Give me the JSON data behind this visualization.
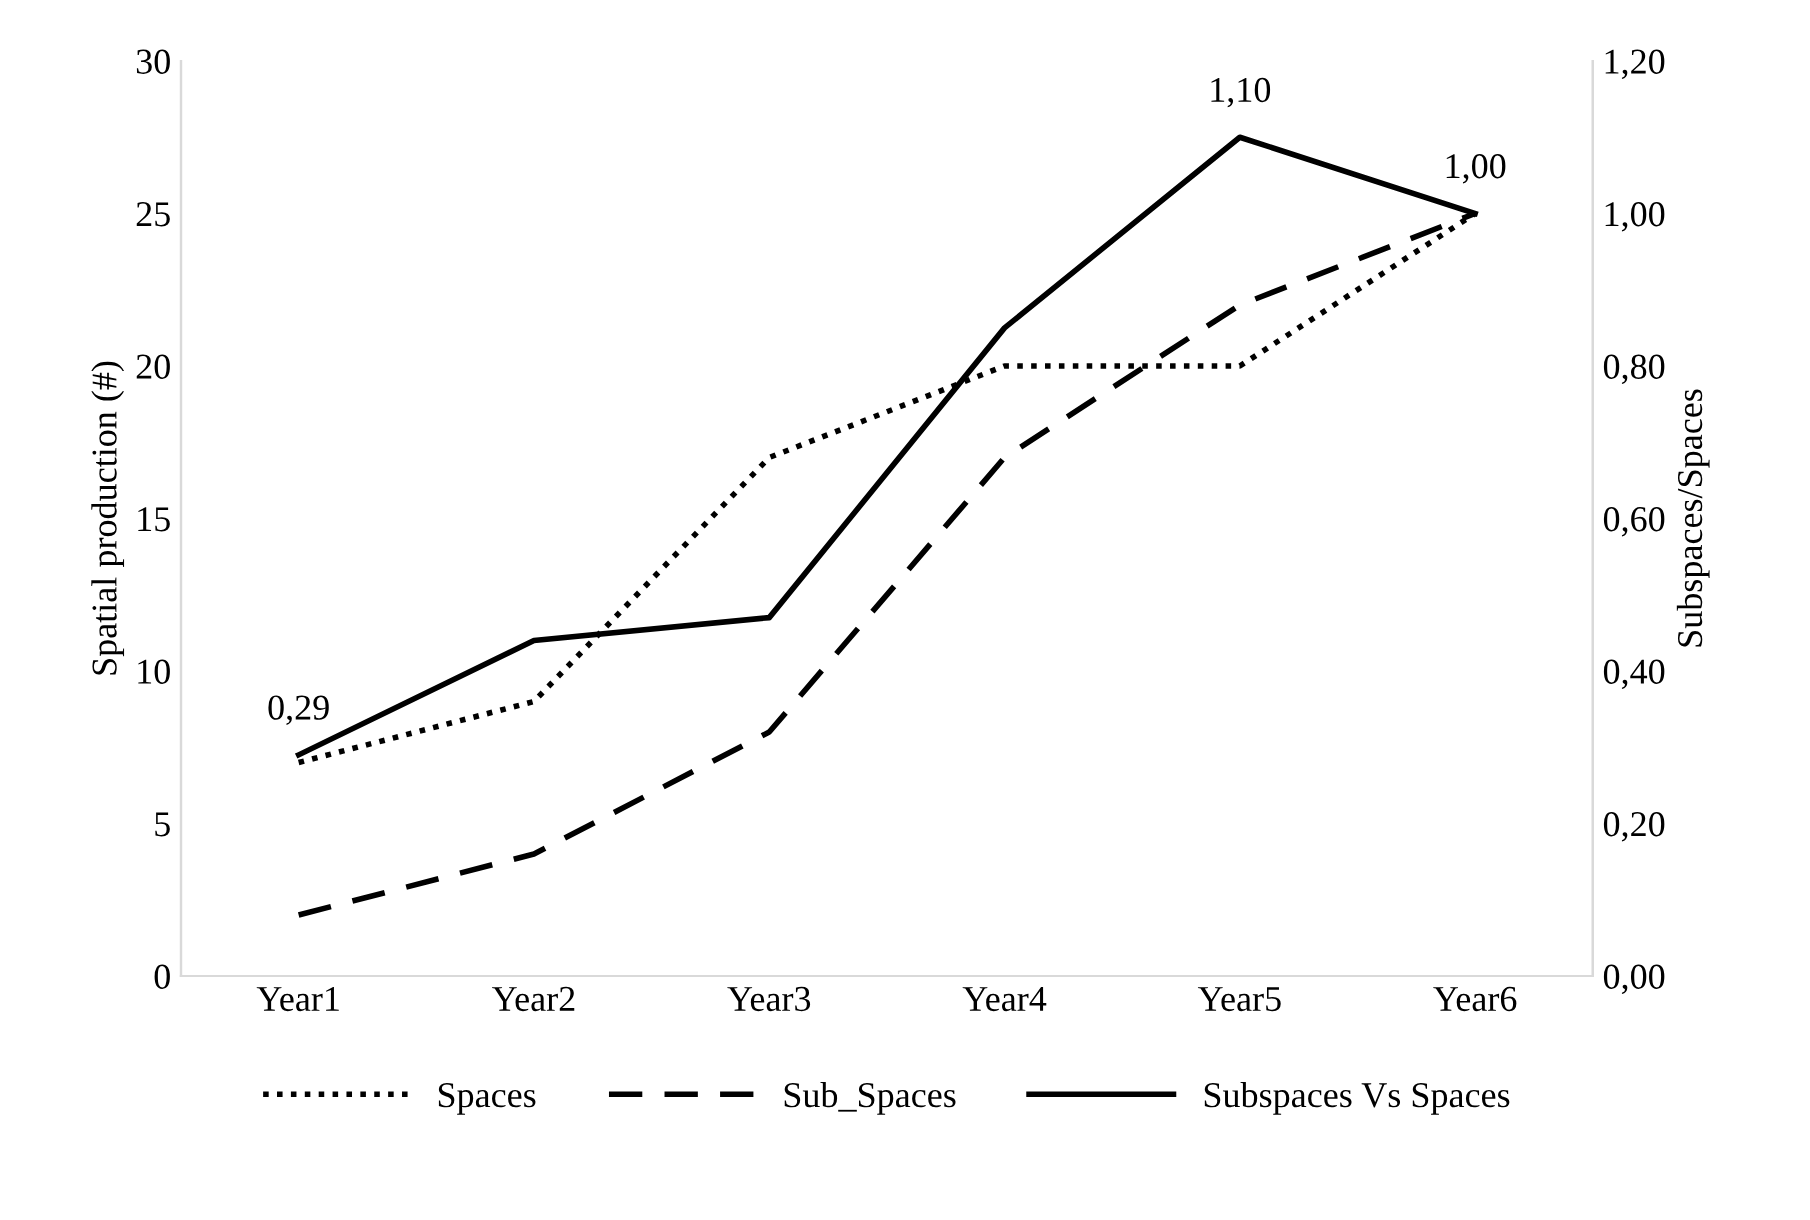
{
  "chart_data": {
    "type": "line",
    "ylabel": "Spatial production (#)",
    "y2label": "Subspaces/Spaces",
    "categories": [
      "Year1",
      "Year2",
      "Year3",
      "Year4",
      "Year5",
      "Year6"
    ],
    "series": [
      {
        "name": "Spaces",
        "color": "#000000",
        "line_style": "dotted",
        "values": [
          7,
          9,
          17,
          20,
          20,
          25
        ]
      },
      {
        "name": "Sub_Spaces",
        "color": "#000000",
        "line_style": "dashed",
        "values": [
          2,
          4,
          8,
          17,
          22,
          25
        ]
      },
      {
        "name": "Subspaces Vs Spaces",
        "color": "#000000",
        "line_style": "solid",
        "axis": "y2",
        "values": [
          0.29,
          0.44,
          0.47,
          0.85,
          1.1,
          1.0
        ],
        "value_labels": [
          "0,29",
          null,
          null,
          null,
          "1,10",
          "1,00"
        ]
      }
    ],
    "ylim": [
      0,
      30
    ],
    "yticks": [
      0,
      5,
      10,
      15,
      20,
      25,
      30
    ],
    "y2lim": [
      0,
      1.2
    ],
    "y2ticks": [
      {
        "value": 0,
        "label": "0,00"
      },
      {
        "value": 0.2,
        "label": "0,20"
      },
      {
        "value": 0.4,
        "label": "0,40"
      },
      {
        "value": 0.6,
        "label": "0,60"
      },
      {
        "value": 0.8,
        "label": "0,80"
      },
      {
        "value": 1.0,
        "label": "1,00"
      },
      {
        "value": 1.2,
        "label": "1,20"
      }
    ],
    "grid": false,
    "legend": "bottom",
    "marker": "none"
  }
}
